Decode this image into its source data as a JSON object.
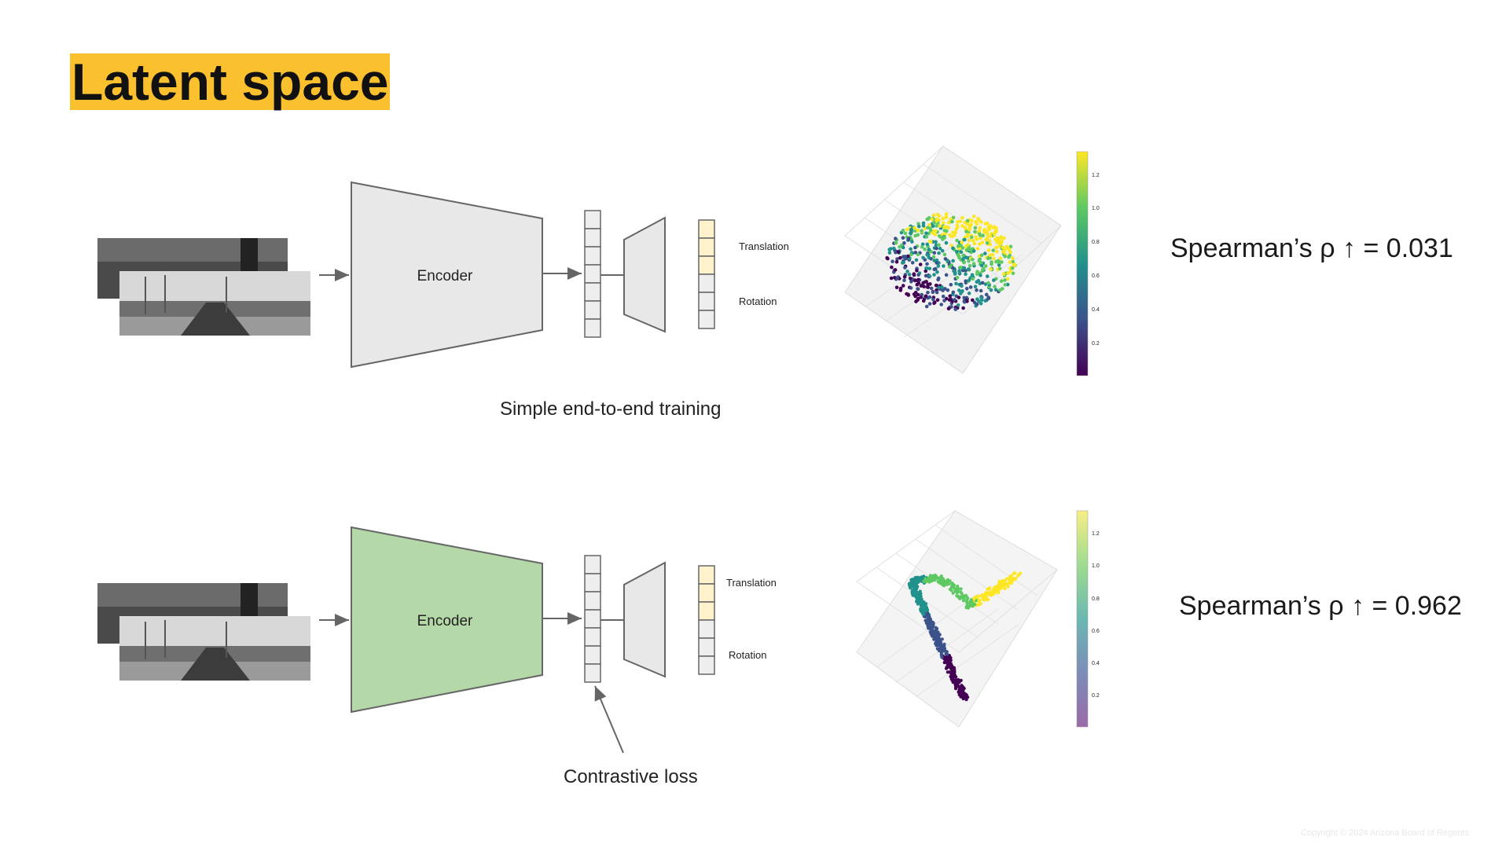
{
  "slide": {
    "title": "Latent space",
    "copyright": "Copyright © 2024 Arizona Board of Regents"
  },
  "rows": [
    {
      "encoder_label": "Encoder",
      "encoder_color": "#e8e8e8",
      "translation_label": "Translation",
      "rotation_label": "Rotation",
      "caption": "Simple end-to-end training",
      "metric": "Spearman’s ρ ↑ = 0.031",
      "colorbar_ticks": [
        "1.2",
        "1.0",
        "0.8",
        "0.6",
        "0.4",
        "0.2"
      ],
      "colormap": "viridis",
      "scatter_shape": "diffuse-cloud"
    },
    {
      "encoder_label": "Encoder",
      "encoder_color": "#b5d8a8",
      "translation_label": "Translation",
      "rotation_label": "Rotation",
      "caption": "Contrastive loss",
      "metric": "Spearman’s ρ ↑ = 0.962",
      "colorbar_ticks": [
        "1.2",
        "1.0",
        "0.8",
        "0.6",
        "0.4",
        "0.2"
      ],
      "colormap": "viridis-faded",
      "scatter_shape": "smooth-curve"
    }
  ],
  "colors": {
    "title_highlight": "#fbc02d",
    "output_highlight": "#fff2cc",
    "latent_box": "#eeeeee",
    "arrow": "#666666"
  }
}
